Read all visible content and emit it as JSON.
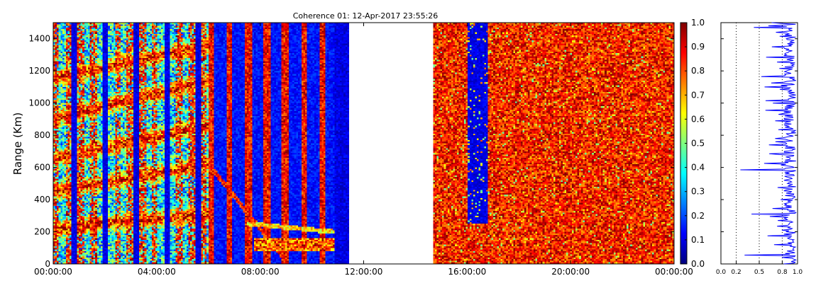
{
  "chart_data": [
    {
      "type": "heatmap",
      "title": "Coherence 01: 12-Apr-2017 23:55:26",
      "ylabel": "Range (Km)",
      "xlabel": "",
      "x_ticks": [
        "00:00:00",
        "04:00:00",
        "08:00:00",
        "12:00:00",
        "16:00:00",
        "20:00:00",
        "00:00:00"
      ],
      "x_range_hours": [
        0,
        24
      ],
      "y_ticks": [
        0,
        200,
        400,
        600,
        800,
        1000,
        1200,
        1400
      ],
      "ylim": [
        0,
        1500
      ],
      "data_gap_hours": [
        11.4,
        14.7
      ],
      "colorbar": {
        "colormap": "jet",
        "range": [
          0.0,
          1.0
        ],
        "ticks": [
          "0.0",
          "0.1",
          "0.2",
          "0.3",
          "0.4",
          "0.5",
          "0.6",
          "0.7",
          "0.8",
          "0.9",
          "1.0"
        ]
      }
    },
    {
      "type": "line",
      "title": "",
      "xlabel": "",
      "ylabel": "",
      "x_ticks": [
        "0.0",
        "0.2",
        "0.5",
        "0.8",
        "1.0"
      ],
      "xlim": [
        0,
        1
      ],
      "ylim": [
        0,
        1500
      ],
      "reference_lines_x": [
        0.2,
        0.5,
        0.8
      ],
      "series_color": "#0000ff"
    }
  ]
}
